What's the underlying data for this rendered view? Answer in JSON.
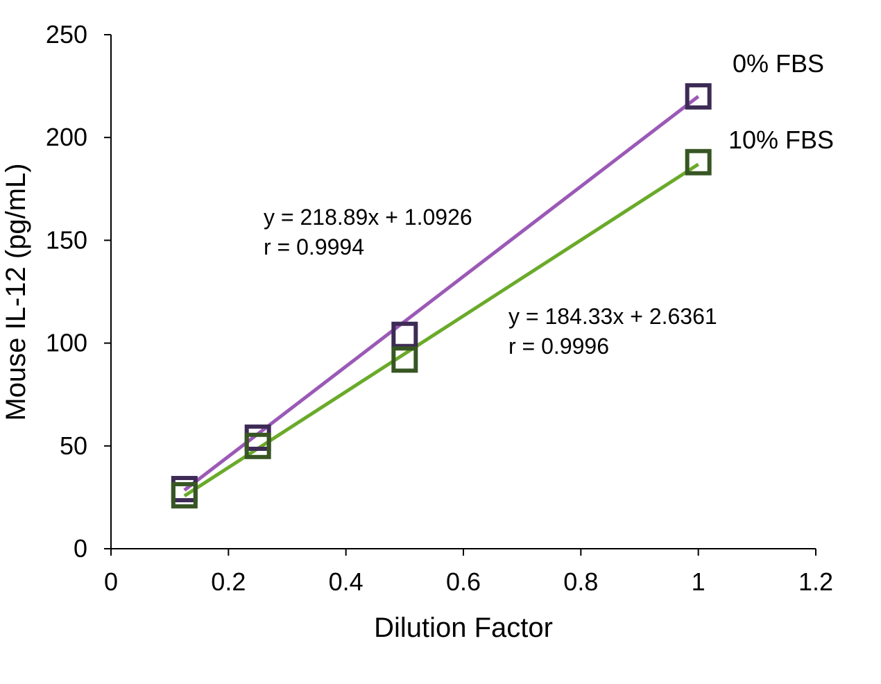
{
  "chart_data": {
    "type": "scatter",
    "xlabel": "Dilution Factor",
    "ylabel": "Mouse IL-12 (pg/mL)",
    "xlim": [
      0,
      1.2
    ],
    "ylim": [
      0,
      250
    ],
    "xticks": [
      "0",
      "0.2",
      "0.4",
      "0.6",
      "0.8",
      "1",
      "1.2"
    ],
    "yticks": [
      "0",
      "50",
      "100",
      "150",
      "200",
      "250"
    ],
    "grid": false,
    "series": [
      {
        "name": "0% FBS",
        "color": "#9b59b6",
        "marker_color": "#3d2b56",
        "marker": "hollow-square",
        "x": [
          0.125,
          0.25,
          0.5,
          1
        ],
        "y": [
          29,
          54,
          104,
          220
        ],
        "trendline": {
          "slope": 218.89,
          "intercept": 1.0926
        },
        "equation": "y = 218.89x + 1.0926",
        "r_text": "r = 0.9994"
      },
      {
        "name": "10% FBS",
        "color": "#6aaa2a",
        "marker_color": "#375623",
        "marker": "hollow-square",
        "x": [
          0.125,
          0.25,
          0.5,
          1
        ],
        "y": [
          26,
          50,
          92,
          188
        ],
        "trendline": {
          "slope": 184.33,
          "intercept": 2.6361
        },
        "equation": "y = 184.33x + 2.6361",
        "r_text": "r = 0.9996"
      }
    ]
  }
}
